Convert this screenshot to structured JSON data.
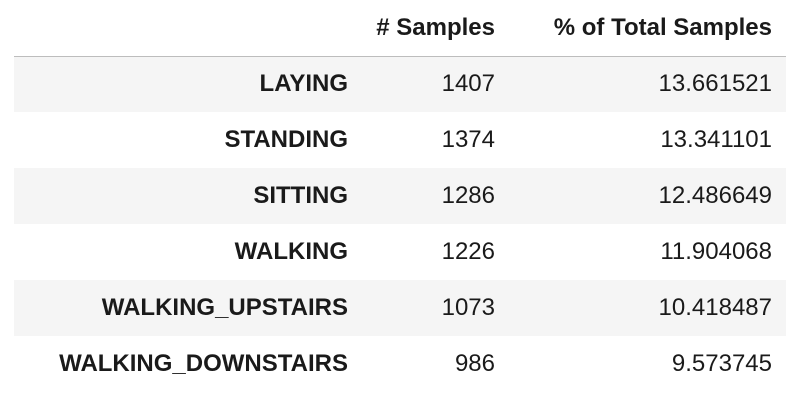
{
  "table": {
    "columns": [
      "",
      "# Samples",
      "% of Total Samples"
    ],
    "rows": [
      {
        "label": "LAYING",
        "samples": "1407",
        "percent": "13.661521"
      },
      {
        "label": "STANDING",
        "samples": "1374",
        "percent": "13.341101"
      },
      {
        "label": "SITTING",
        "samples": "1286",
        "percent": "12.486649"
      },
      {
        "label": "WALKING",
        "samples": "1226",
        "percent": "11.904068"
      },
      {
        "label": "WALKING_UPSTAIRS",
        "samples": "1073",
        "percent": "10.418487"
      },
      {
        "label": "WALKING_DOWNSTAIRS",
        "samples": "986",
        "percent": "9.573745"
      }
    ]
  },
  "colors": {
    "stripe": "#f5f5f5",
    "header_rule": "#bdbdbd",
    "text": "#1a1a1a"
  }
}
